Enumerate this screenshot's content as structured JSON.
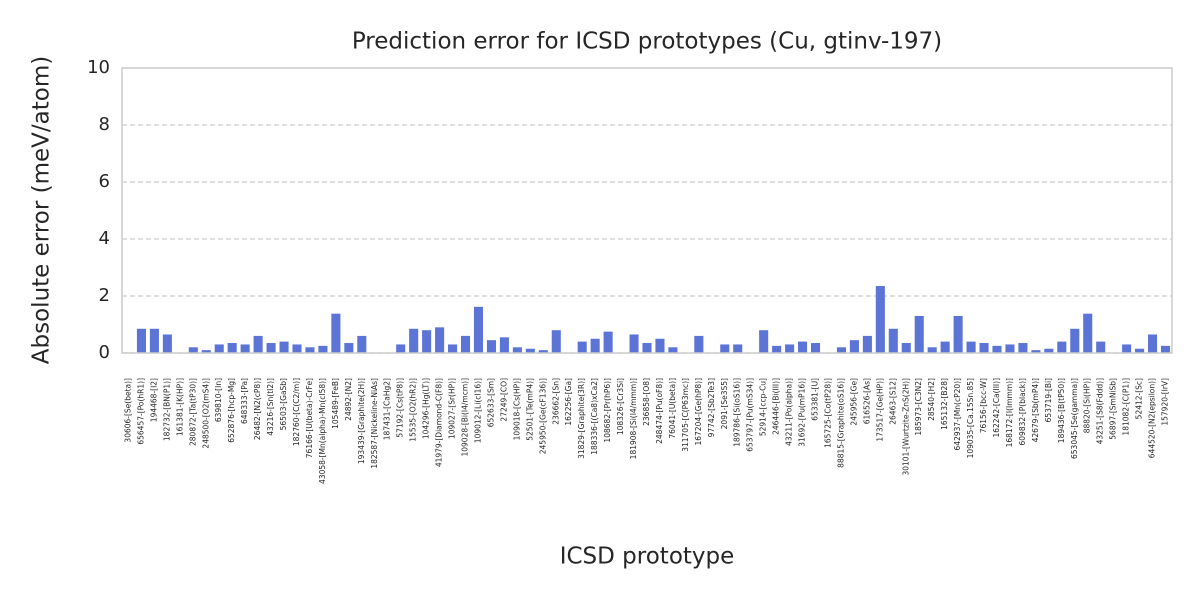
{
  "chart_data": {
    "type": "bar",
    "title": "Prediction error for ICSD prototypes (Cu, gtinv-197)",
    "xlabel": "ICSD prototype",
    "ylabel": "Absolute error (meV/atom)",
    "categories": [
      "30606-[Se(beta)]",
      "656457-[Po(hR1)]",
      "194468-[I2]",
      "182732-[BN(P1)]",
      "161381-[K(HP)]",
      "280872-[Ta(tP30)]",
      "248500-[O2(mS4)]",
      "639810-[In]",
      "652876-[hcp-Mg]",
      "648333-[Pa]",
      "26482-[N2(cP8)]",
      "43216-[Sn(tI2)]",
      "56503-[GaSb]",
      "182760-[C(C2/m)]",
      "76166-[U(beta)-CrFe]",
      "43058-[Mn(alpha)-Mn(cI58)]",
      "105489-[FeB]",
      "24892-[N2]",
      "193439-[Graphite(2H)]",
      "182587-[Nickeline-NiAs]",
      "187431-[CaHg2]",
      "57192-[Cs(tP8)]",
      "15535-[O2(hR2)]",
      "104296-[Hg(LT)]",
      "41979-[Diamond-C(F8)]",
      "109027-[Sr(HP)]",
      "109028-[Bi(I4/mcm)]",
      "109012-[Li(cI16)]",
      "652633-[Sm]",
      "27249-[CO]",
      "109018-[Cs(HP)]",
      "52501-[Te(mP4)]",
      "245950-[Ge(cF136)]",
      "236662-[Sn]",
      "162256-[Ga]",
      "31829-[Graphite(3R)]",
      "188336-[(Ca8)xCa2]",
      "108682-[Pr(hP6)]",
      "108326-[Cr3Si]",
      "181908-[Si(I4/mmm)]",
      "236858-[O8]",
      "248474-[Pu(oF8)]",
      "76041-[U(beta)]",
      "311705-[C(P63mc)]",
      "167204-[Ge(hP8)]",
      "97742-[Sb2Te3]",
      "2091-[Se3S5]",
      "189786-[Si(oS16)]",
      "653797-[Pu(mS34)]",
      "52914-[ccp-Cu]",
      "246446-[Bi(III)]",
      "43211-[Po(alpha)]",
      "31692-[Pu(mP16)]",
      "653381-[U]",
      "165725-[Co(tP28)]",
      "88815-[Graphite(oS16)]",
      "245956-[Ge]",
      "616526-[As]",
      "173517-[Ge(HP)]",
      "26463-[S12]",
      "30101-[Wurtzite-ZnS(2H)]",
      "185973-[C3N2]",
      "28540-[H2]",
      "165132-[B28]",
      "642937-[Mn(cP20)]",
      "109035-[Ca.15Sn.85]",
      "76156-[bcc-W]",
      "162242-[Ca(III)]",
      "168172-[I(Immm)]",
      "609832-[P(black)]",
      "42679-[Sb(mP4)]",
      "653719-[Bi]",
      "189436-[B(tP50)]",
      "653045-[Se(gamma)]",
      "88820-[Si(HP)]",
      "43251-[S8(Fddd)]",
      "56897-[SmNiSb]",
      "181082-[C(P1)]",
      "52412-[Sc]",
      "644520-[N2(epsilon)]",
      "157920-[IrV]"
    ],
    "values": [
      0.02,
      0.85,
      0.85,
      0.65,
      0,
      0.2,
      0.1,
      0.3,
      0.35,
      0.3,
      0.6,
      0.35,
      0.4,
      0.3,
      0.2,
      0.25,
      1.38,
      0.35,
      0.6,
      0,
      0,
      0.3,
      0.85,
      0.8,
      0.9,
      0.3,
      0.6,
      1.62,
      0.45,
      0.55,
      0.2,
      0.15,
      0.1,
      0.8,
      0,
      0.4,
      0.5,
      0.75,
      0,
      0.65,
      0.35,
      0.5,
      0.2,
      0,
      0.6,
      0,
      0.3,
      0.3,
      0,
      0.8,
      0.25,
      0.3,
      0.4,
      0.35,
      0,
      0.2,
      0.45,
      0.6,
      2.35,
      0.85,
      0.35,
      1.3,
      0.2,
      0.4,
      1.3,
      0.4,
      0.35,
      0.25,
      0.3,
      0.35,
      0.1,
      0.15,
      0.4,
      0.85,
      1.38,
      0.4,
      0,
      0.3,
      0.15,
      0.65,
      0.25
    ],
    "color": "#5b74d6",
    "ylim": [
      0,
      10
    ],
    "yticks": [
      0,
      2,
      4,
      6,
      8,
      10
    ],
    "grid": true
  }
}
